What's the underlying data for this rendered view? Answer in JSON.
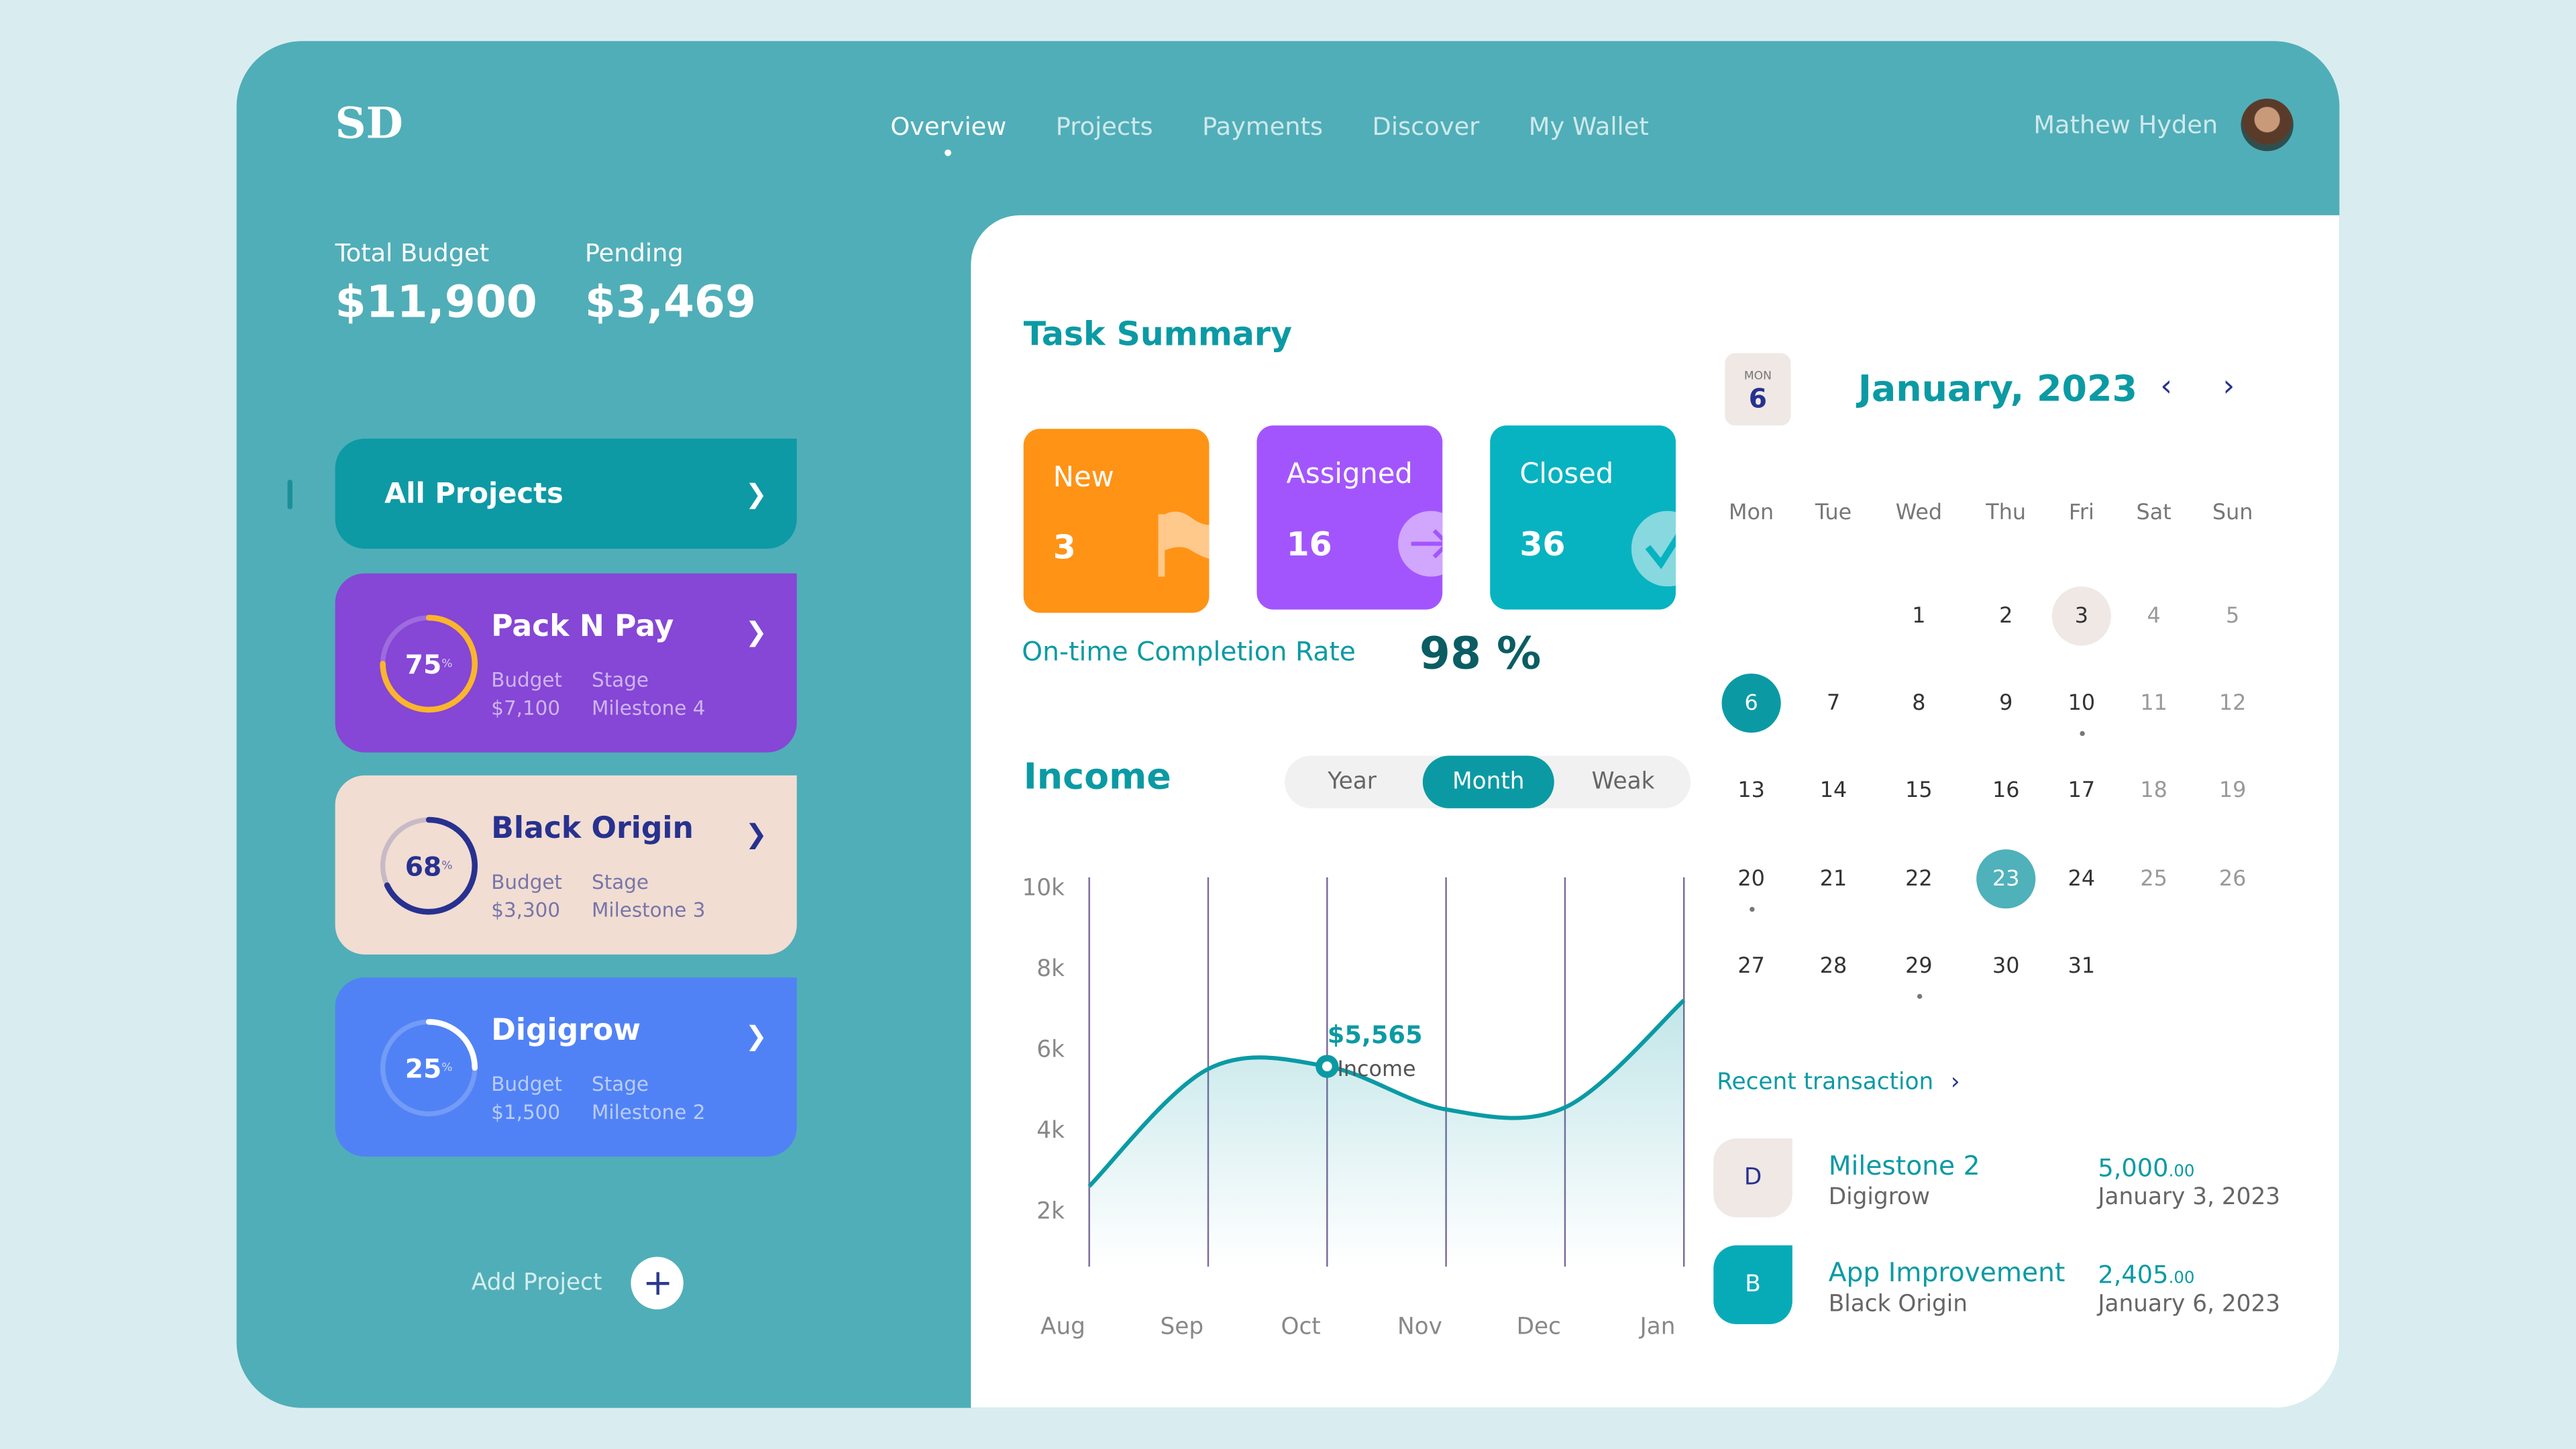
{
  "brand": "SD",
  "nav": [
    {
      "label": "Overview",
      "active": true
    },
    {
      "label": "Projects"
    },
    {
      "label": "Payments"
    },
    {
      "label": "Discover"
    },
    {
      "label": "My Wallet"
    }
  ],
  "user": {
    "name": "Mathew Hyden"
  },
  "budget": {
    "total_label": "Total Budget",
    "total": "$11,900",
    "pending_label": "Pending",
    "pending": "$3,469"
  },
  "all_projects": "All Projects",
  "projects": [
    {
      "name": "Pack N Pay",
      "percent": 75,
      "pct_text": "75",
      "budget_label": "Budget",
      "budget": "$7,100",
      "stage_label": "Stage",
      "stage": "Milestone 4",
      "bg": "#8646d6",
      "ring": "#fbb52b",
      "text": "#ffffff"
    },
    {
      "name": "Black Origin",
      "percent": 68,
      "pct_text": "68",
      "budget_label": "Budget",
      "budget": "$3,300",
      "stage_label": "Stage",
      "stage": "Milestone 3",
      "bg": "#f1ddd2",
      "ring": "#27318f",
      "text": "#27318f"
    },
    {
      "name": "Digigrow",
      "percent": 25,
      "pct_text": "25",
      "budget_label": "Budget",
      "budget": "$1,500",
      "stage_label": "Stage",
      "stage": "Milestone 2",
      "bg": "#5182f5",
      "ring": "#ffffff",
      "text": "#ffffff"
    }
  ],
  "add_project": "Add Project",
  "task_summary": {
    "title": "Task Summary",
    "cards": [
      {
        "label": "New",
        "count": "3",
        "color": "#ff9315",
        "icon": "flag-icon"
      },
      {
        "label": "Assigned",
        "count": "16",
        "color": "#a355fd",
        "icon": "arrow-right-icon"
      },
      {
        "label": "Closed",
        "count": "36",
        "color": "#07b3c1",
        "icon": "check-icon"
      }
    ]
  },
  "completion": {
    "label": "On-time Completion Rate",
    "value": "98 %"
  },
  "income": {
    "title": "Income",
    "tabs": [
      "Year",
      "Month",
      "Weak"
    ],
    "active_tab": "Month",
    "tooltip_value": "$5,565",
    "tooltip_label": "Income"
  },
  "chart_data": {
    "type": "area",
    "x": [
      "Aug",
      "Sep",
      "Oct",
      "Nov",
      "Dec",
      "Jan"
    ],
    "values": [
      2600,
      5500,
      5565,
      4500,
      4550,
      7200
    ],
    "yticks": [
      "10k",
      "8k",
      "6k",
      "4k",
      "2k"
    ],
    "ylim": [
      0,
      10000
    ],
    "highlight": "Oct",
    "color": "#0b9aa4"
  },
  "calendar": {
    "badge_day": "MON",
    "badge_date": "6",
    "title": "January, 2023",
    "weekdays": [
      "Mon",
      "Tue",
      "Wed",
      "Thu",
      "Fri",
      "Sat",
      "Sun"
    ],
    "first_weekday_index": 2,
    "days": 31,
    "today": 3,
    "selected": 6,
    "highlighted": 23,
    "event_dots": [
      10,
      20,
      29
    ]
  },
  "recent": {
    "title": "Recent transaction",
    "items": [
      {
        "initial": "D",
        "title": "Milestone 2",
        "sub": "Digigrow",
        "amount": "5,000",
        "cents": ".00",
        "date": "January 3, 2023",
        "bg": "#efe8e5",
        "fg": "#27318f"
      },
      {
        "initial": "B",
        "title": "App Improvement",
        "sub": "Black Origin",
        "amount": "2,405",
        "cents": ".00",
        "date": "January 6, 2023",
        "bg": "#07abb7",
        "fg": "#ffffff"
      }
    ]
  }
}
